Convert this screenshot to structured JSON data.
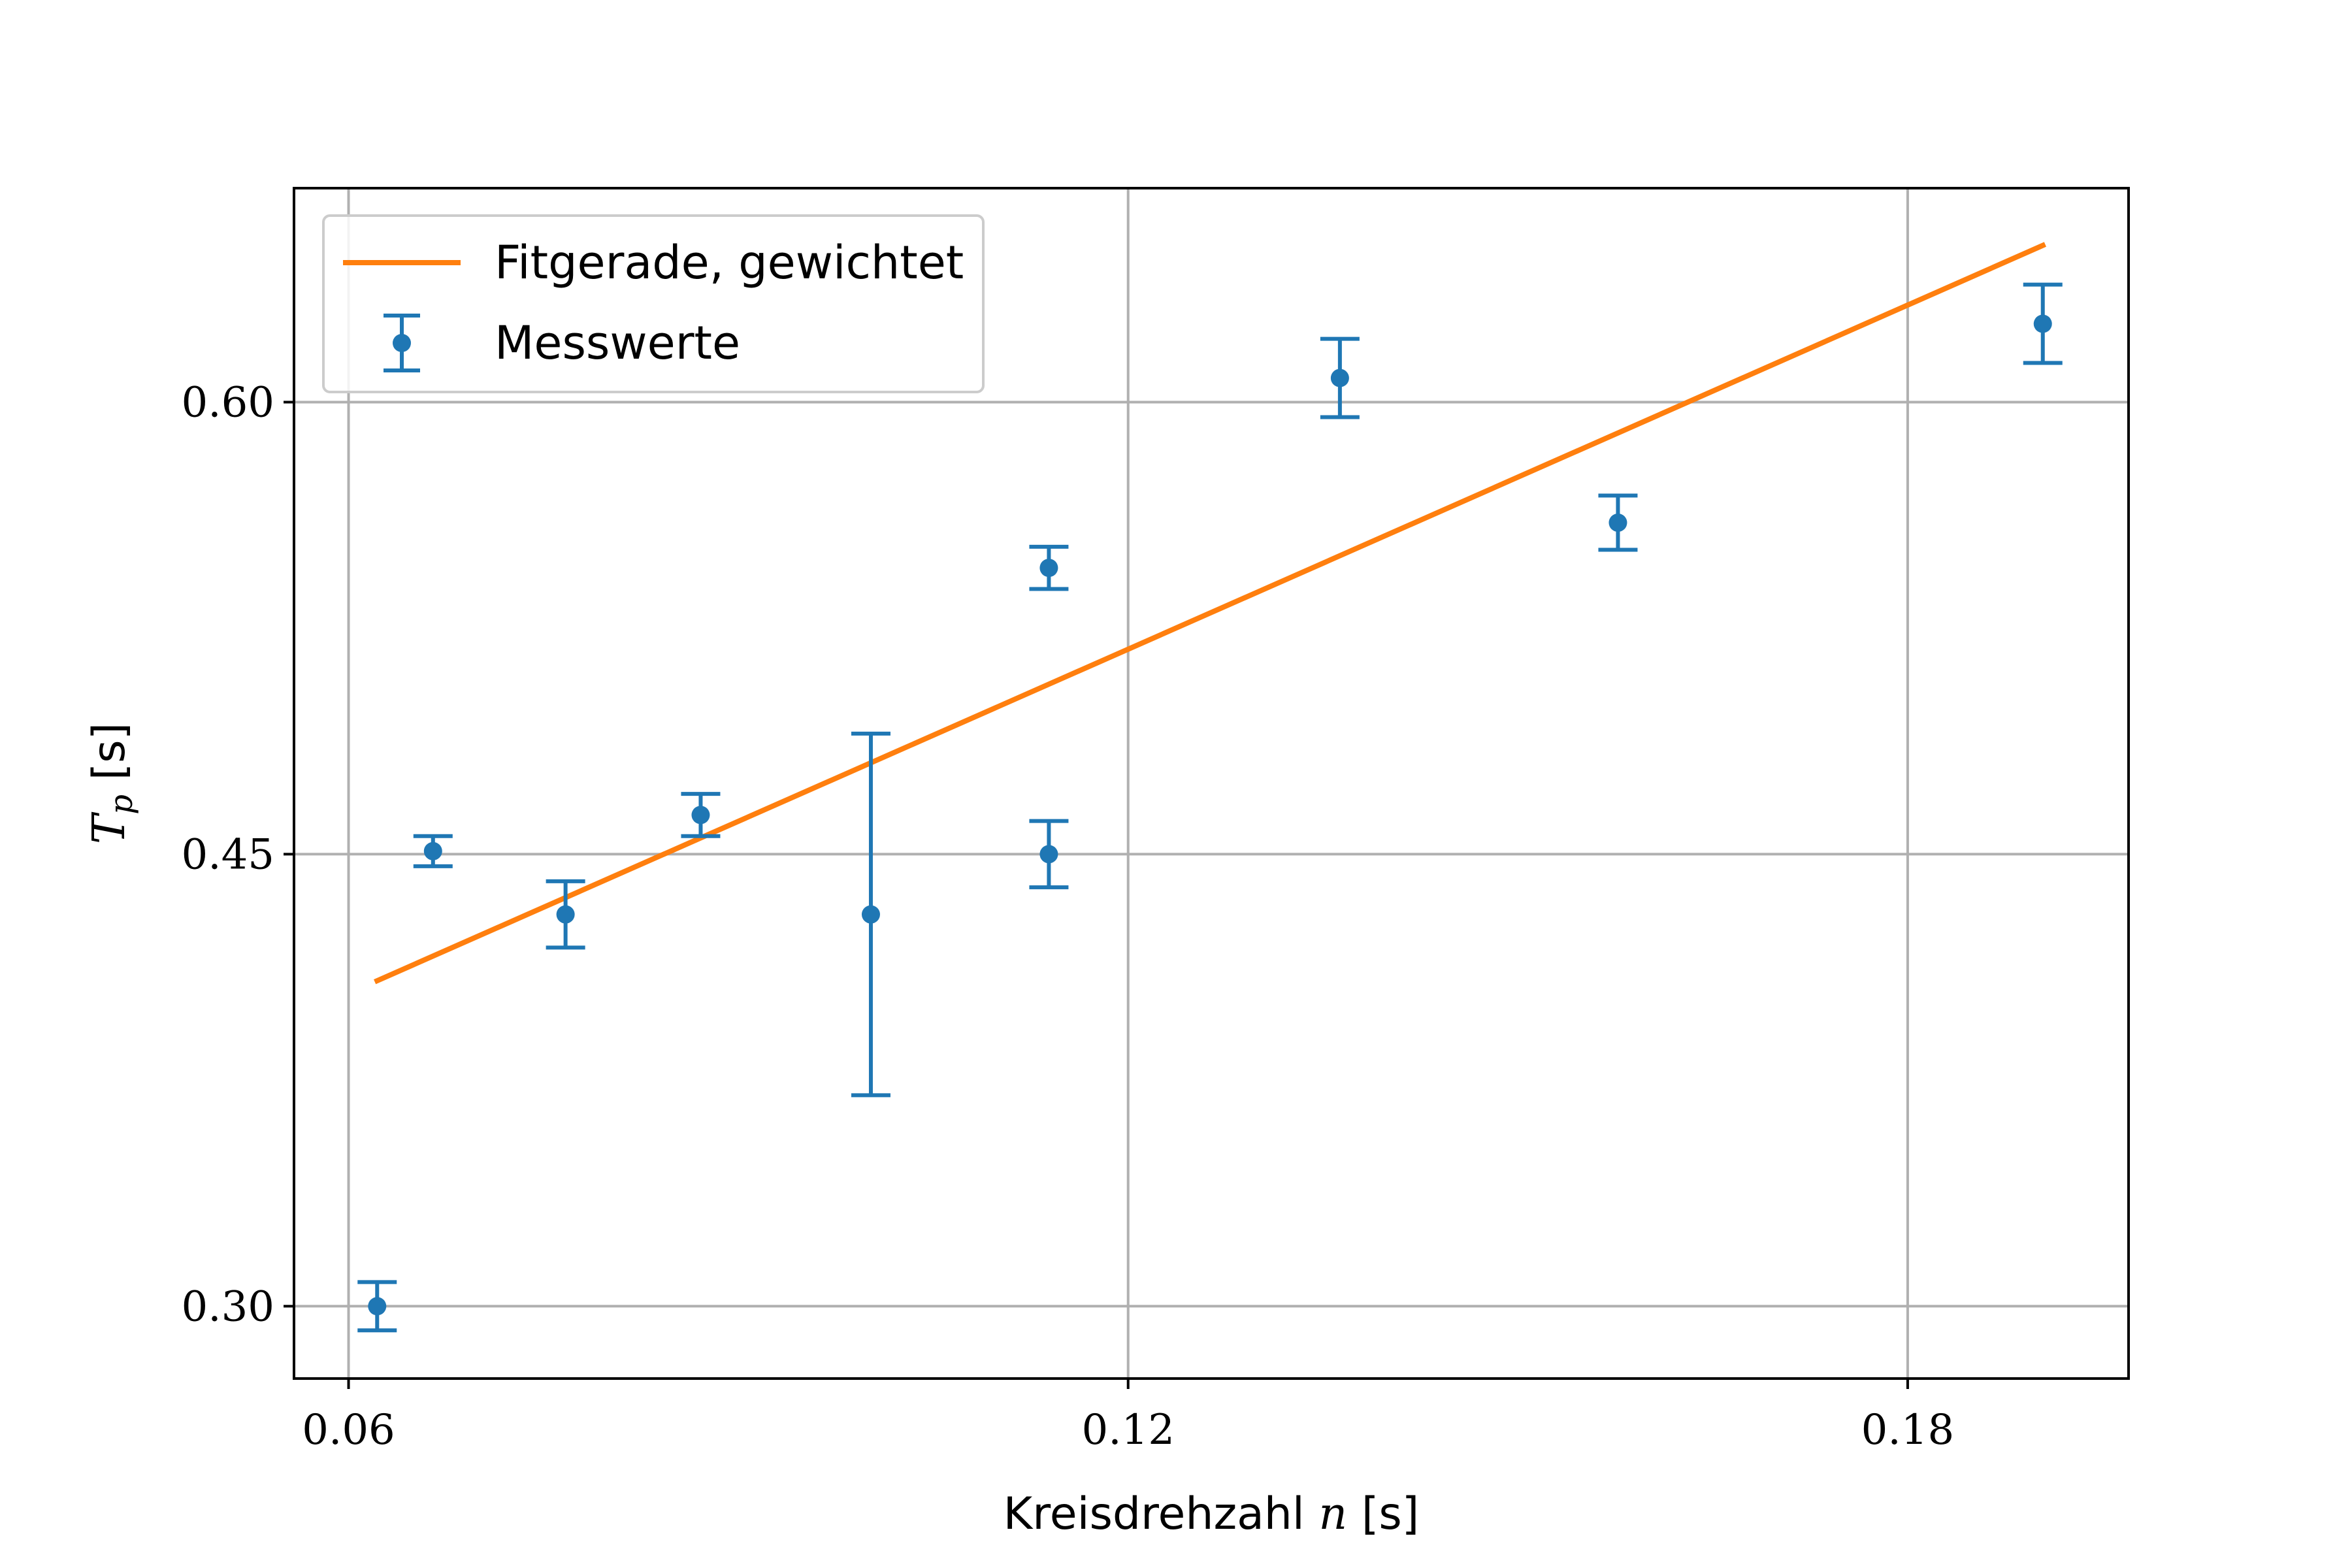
{
  "chart_data": {
    "type": "scatter",
    "x_axis": {
      "label_prefix": "Kreisdrehzahl ",
      "label_var": "n",
      "label_suffix": " [s]",
      "range": [
        0.0558,
        0.197
      ],
      "ticks": [
        0.06,
        0.12,
        0.18
      ],
      "tick_labels": [
        "0.06",
        "0.12",
        "0.18"
      ]
    },
    "y_axis": {
      "label_var": "T",
      "label_sub": "p",
      "label_suffix": " [s]",
      "range": [
        0.276,
        0.671
      ],
      "ticks": [
        0.3,
        0.45,
        0.6
      ],
      "tick_labels": [
        "0.30",
        "0.45",
        "0.60"
      ]
    },
    "grid": true,
    "legend_position": "top-left",
    "series": [
      {
        "name": "Fitgerade, gewichtet",
        "kind": "line",
        "color": "#ff7f0e",
        "x": [
          0.0622,
          0.1904
        ],
        "y": [
          0.408,
          0.652
        ]
      },
      {
        "name": "Messwerte",
        "kind": "errorbar",
        "color": "#1f77b4",
        "x": [
          0.0622,
          0.0665,
          0.0767,
          0.0871,
          0.1002,
          0.1139,
          0.1139,
          0.1363,
          0.1577,
          0.1904
        ],
        "y": [
          0.3,
          0.451,
          0.43,
          0.463,
          0.43,
          0.545,
          0.45,
          0.608,
          0.56,
          0.626
        ],
        "yerr": [
          0.008,
          0.005,
          0.011,
          0.007,
          0.06,
          0.007,
          0.011,
          0.013,
          0.009,
          0.013
        ]
      }
    ]
  }
}
